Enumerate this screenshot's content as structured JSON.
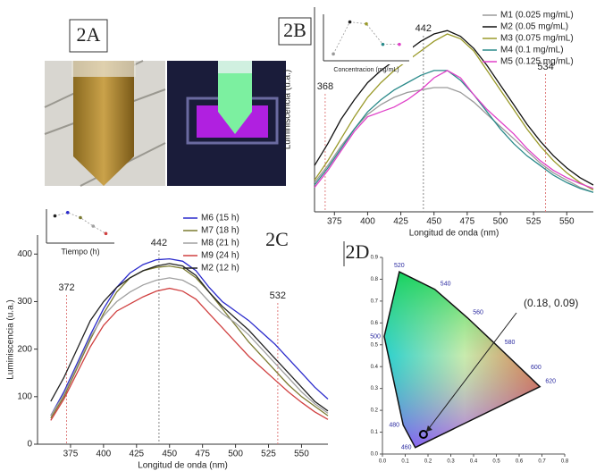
{
  "panels": {
    "a": "2A",
    "b": "2B",
    "c": "2C",
    "d": "2D"
  },
  "chart_data": [
    {
      "type": "line",
      "x_label": "Longitud de onda (nm)",
      "y_label": "Luminiscencia (u.a.)",
      "x": [
        360,
        370,
        380,
        390,
        400,
        410,
        420,
        430,
        440,
        450,
        460,
        470,
        480,
        490,
        500,
        510,
        520,
        530,
        540,
        550,
        560,
        570
      ],
      "xlim": [
        360,
        570
      ],
      "ylim": [
        0,
        420
      ],
      "xticks": [
        375,
        400,
        425,
        450,
        475,
        500,
        525,
        550
      ],
      "vlines": [
        {
          "value": 442,
          "label": "442"
        },
        {
          "value": 368,
          "label": "368"
        },
        {
          "value": 534,
          "label": "534"
        }
      ],
      "series": [
        {
          "name": "M1 (0.025 mg/mL)",
          "color": "#9a9a9a",
          "values": [
            60,
            95,
            135,
            170,
            200,
            220,
            235,
            245,
            250,
            255,
            255,
            245,
            225,
            200,
            175,
            150,
            125,
            100,
            80,
            65,
            50,
            40
          ]
        },
        {
          "name": "M2 (0.05 mg/mL)",
          "color": "#111111",
          "values": [
            95,
            140,
            190,
            230,
            265,
            290,
            310,
            330,
            350,
            365,
            372,
            360,
            335,
            300,
            260,
            220,
            180,
            145,
            115,
            90,
            70,
            55
          ]
        },
        {
          "name": "M3 (0.075 mg/mL)",
          "color": "#9a9a2a",
          "values": [
            65,
            105,
            150,
            195,
            235,
            265,
            290,
            310,
            330,
            350,
            365,
            355,
            330,
            290,
            250,
            210,
            170,
            135,
            105,
            80,
            60,
            45
          ]
        },
        {
          "name": "M4 (0.1 mg/mL)",
          "color": "#2a8a8a",
          "values": [
            55,
            90,
            130,
            170,
            205,
            230,
            250,
            265,
            280,
            290,
            290,
            270,
            240,
            205,
            170,
            140,
            115,
            95,
            75,
            60,
            48,
            40
          ]
        },
        {
          "name": "M5 (0.125 mg/mL)",
          "color": "#e040c8",
          "values": [
            50,
            85,
            125,
            165,
            195,
            205,
            215,
            230,
            250,
            275,
            290,
            275,
            240,
            210,
            185,
            160,
            130,
            105,
            85,
            70,
            58,
            48
          ]
        }
      ]
    },
    {
      "type": "line",
      "x_label": "Concentracion (mg/mL)",
      "x": [
        0.025,
        0.05,
        0.075,
        0.1,
        0.125
      ],
      "xlim": [
        0.01,
        0.14
      ],
      "ylim": [
        230,
        400
      ],
      "series": [
        {
          "color": "#999999",
          "values": [
            255,
            372,
            365,
            290,
            290
          ],
          "marker_colors": [
            "#999999",
            "#222222",
            "#9a9a2a",
            "#2a8a8a",
            "#e040c8"
          ]
        }
      ]
    },
    {
      "type": "line",
      "x_label": "Longitud de onda (nm)",
      "y_label": "Luminiscencia (u.a.)",
      "x": [
        360,
        370,
        380,
        390,
        400,
        410,
        420,
        430,
        440,
        450,
        460,
        470,
        480,
        490,
        500,
        510,
        520,
        530,
        540,
        550,
        560,
        570
      ],
      "xlim": [
        350,
        570
      ],
      "ylim": [
        0,
        440
      ],
      "xticks": [
        375,
        400,
        425,
        450,
        475,
        500,
        525,
        550
      ],
      "yticks": [
        0,
        100,
        200,
        300,
        400
      ],
      "vlines": [
        {
          "value": 442,
          "label": "442"
        },
        {
          "value": 372,
          "label": "372"
        },
        {
          "value": 532,
          "label": "532"
        }
      ],
      "series": [
        {
          "name": "M6 (15 h)",
          "color": "#2a2acc",
          "values": [
            60,
            110,
            170,
            230,
            285,
            330,
            360,
            378,
            388,
            390,
            385,
            365,
            330,
            300,
            280,
            260,
            235,
            210,
            180,
            150,
            120,
            95
          ]
        },
        {
          "name": "M7 (18 h)",
          "color": "#7a7a30",
          "values": [
            55,
            100,
            160,
            220,
            275,
            320,
            350,
            365,
            372,
            375,
            370,
            350,
            320,
            285,
            250,
            215,
            185,
            155,
            125,
            100,
            80,
            60
          ]
        },
        {
          "name": "M8 (21 h)",
          "color": "#a0a0a0",
          "values": [
            60,
            105,
            165,
            225,
            270,
            300,
            320,
            335,
            345,
            350,
            345,
            330,
            300,
            275,
            255,
            230,
            200,
            170,
            140,
            110,
            85,
            65
          ]
        },
        {
          "name": "M9 (24 h)",
          "color": "#d04040",
          "values": [
            50,
            95,
            150,
            205,
            250,
            280,
            295,
            310,
            322,
            328,
            322,
            305,
            275,
            245,
            215,
            185,
            160,
            135,
            110,
            88,
            68,
            52
          ]
        },
        {
          "name": "M2 (12 h)",
          "color": "#222222",
          "values": [
            90,
            140,
            200,
            260,
            300,
            330,
            350,
            365,
            375,
            380,
            375,
            355,
            320,
            290,
            265,
            240,
            210,
            180,
            150,
            120,
            90,
            70
          ]
        }
      ]
    },
    {
      "type": "line",
      "x_label": "Tiempo (h)",
      "x": [
        12,
        15,
        18,
        21,
        24
      ],
      "xlim": [
        10,
        26
      ],
      "ylim": [
        300,
        400
      ],
      "series": [
        {
          "color": "#999999",
          "values": [
            380,
            390,
            375,
            350,
            328
          ],
          "marker_colors": [
            "#222222",
            "#2a2acc",
            "#7a7a30",
            "#a0a0a0",
            "#d04040"
          ]
        }
      ]
    },
    {
      "type": "cie",
      "xlim": [
        0,
        0.8
      ],
      "ylim": [
        0,
        0.9
      ],
      "xticks": [
        {
          "value": 0,
          "label": "0.0"
        },
        0.1,
        0.2,
        0.3,
        0.4,
        0.5,
        0.6,
        0.7,
        0.8
      ],
      "yticks": [
        {
          "value": 0,
          "label": "0.0"
        },
        0.1,
        0.2,
        0.3,
        0.4,
        0.5,
        0.6,
        0.7,
        0.8,
        0.9
      ],
      "locus": {
        "wavelengths": [
          460,
          480,
          500,
          520,
          540,
          560,
          580,
          600,
          620
        ],
        "x": [
          0.144,
          0.091,
          0.008,
          0.074,
          0.23,
          0.373,
          0.512,
          0.627,
          0.691
        ],
        "y": [
          0.03,
          0.133,
          0.538,
          0.834,
          0.754,
          0.624,
          0.487,
          0.372,
          0.308
        ]
      },
      "point": {
        "label": "(0.18, 0.09)",
        "x": 0.18,
        "y": 0.09
      }
    }
  ]
}
